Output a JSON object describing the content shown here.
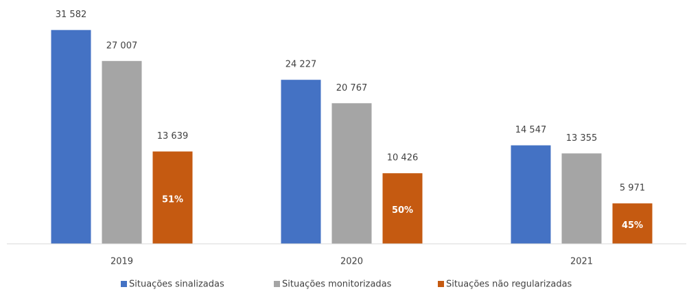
{
  "chart_data": {
    "type": "bar",
    "categories": [
      "2019",
      "2020",
      "2021"
    ],
    "series": [
      {
        "name": "Situações sinalizadas",
        "color": "#4472c4",
        "values": [
          31582,
          24227,
          14547
        ],
        "value_labels": [
          "31 582",
          "24 227",
          "14 547"
        ]
      },
      {
        "name": "Situações monitorizadas",
        "color": "#a5a5a5",
        "values": [
          27007,
          20767,
          13355
        ],
        "value_labels": [
          "27 007",
          "20 767",
          "13 355"
        ]
      },
      {
        "name": "Situações não regularizadas",
        "color": "#c55a11",
        "values": [
          13639,
          10426,
          5971
        ],
        "value_labels": [
          "13 639",
          "10 426",
          "5 971"
        ],
        "inner_labels": [
          "51%",
          "50%",
          "45%"
        ]
      }
    ],
    "ylim": [
      0,
      35000
    ],
    "legend": "bottom"
  }
}
